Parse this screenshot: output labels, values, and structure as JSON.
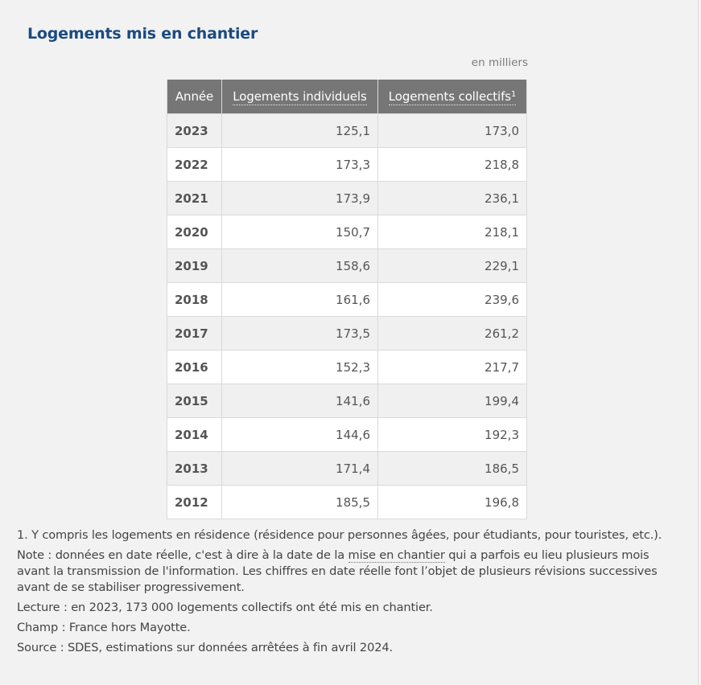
{
  "title": "Logements mis en chantier",
  "unit_label": "en milliers",
  "table": {
    "headers": {
      "year": "Année",
      "individual": "Logements individuels",
      "collective": "Logements collectifs",
      "collective_footnote_marker": "1"
    },
    "rows": [
      {
        "year": "2023",
        "individual": "125,1",
        "collective": "173,0"
      },
      {
        "year": "2022",
        "individual": "173,3",
        "collective": "218,8"
      },
      {
        "year": "2021",
        "individual": "173,9",
        "collective": "236,1"
      },
      {
        "year": "2020",
        "individual": "150,7",
        "collective": "218,1"
      },
      {
        "year": "2019",
        "individual": "158,6",
        "collective": "229,1"
      },
      {
        "year": "2018",
        "individual": "161,6",
        "collective": "239,6"
      },
      {
        "year": "2017",
        "individual": "173,5",
        "collective": "261,2"
      },
      {
        "year": "2016",
        "individual": "152,3",
        "collective": "217,7"
      },
      {
        "year": "2015",
        "individual": "141,6",
        "collective": "199,4"
      },
      {
        "year": "2014",
        "individual": "144,6",
        "collective": "192,3"
      },
      {
        "year": "2013",
        "individual": "171,4",
        "collective": "186,5"
      },
      {
        "year": "2012",
        "individual": "185,5",
        "collective": "196,8"
      }
    ]
  },
  "notes": {
    "footnote_1": "1. Y compris les logements en résidence (résidence pour personnes âgées, pour étudiants, pour touristes, etc.).",
    "note_prefix": "Note : données en date réelle, c'est à dire à la date de la ",
    "note_term": "mise en chantier",
    "note_suffix": " qui a parfois eu lieu plusieurs mois avant la transmission de l'information. Les chiffres en date réelle font l’objet de plusieurs révisions successives avant de se stabiliser progressivement.",
    "lecture": "Lecture : en 2023, 173 000 logements collectifs ont été mis en chantier.",
    "champ": "Champ : France hors Mayotte.",
    "source": "Source : SDES, estimations sur données arrêtées à fin avril 2024."
  },
  "colors": {
    "title": "#1b4a80",
    "header_bg": "#767676",
    "header_text": "#ffffff",
    "row_stripe": "#f0f0f0",
    "row_plain": "#ffffff",
    "page_bg": "#f2f2f2"
  }
}
